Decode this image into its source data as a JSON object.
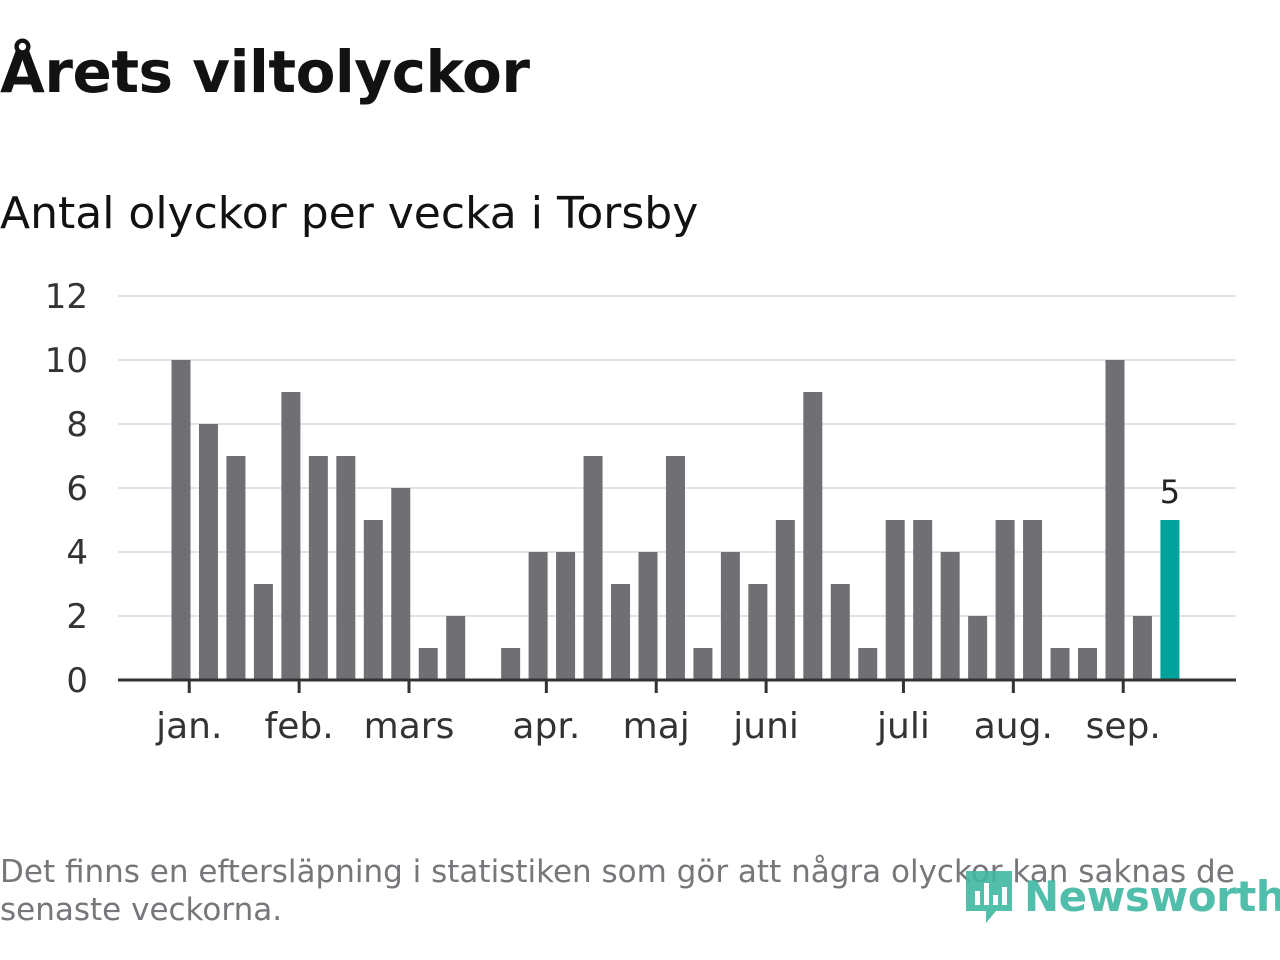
{
  "title": "Årets viltolyckor",
  "subtitle": "Antal olyckor per vecka i Torsby",
  "footnote": "Det finns en eftersläpning i statistiken som gör att några olyckor kan saknas de senaste veckorna.",
  "brand": {
    "name": "Newsworthy"
  },
  "colors": {
    "bar": "#706f74",
    "highlight": "#00a39a",
    "grid": "#e3e3e3",
    "axis": "#333333",
    "text": "#333333",
    "brand": "#3fb8a2"
  },
  "chart_data": {
    "type": "bar",
    "values": [
      10,
      8,
      7,
      3,
      9,
      7,
      7,
      5,
      6,
      1,
      2,
      0,
      1,
      4,
      4,
      7,
      3,
      4,
      7,
      1,
      4,
      3,
      5,
      9,
      3,
      1,
      5,
      5,
      4,
      2,
      5,
      5,
      1,
      1,
      10,
      2,
      5
    ],
    "highlight_index": 36,
    "highlight_label": "5",
    "month_ticks": [
      {
        "label": "jan.",
        "index": 0.3
      },
      {
        "label": "feb.",
        "index": 4.3
      },
      {
        "label": "mars",
        "index": 8.3
      },
      {
        "label": "apr.",
        "index": 13.3
      },
      {
        "label": "maj",
        "index": 17.3
      },
      {
        "label": "juni",
        "index": 21.3
      },
      {
        "label": "juli",
        "index": 26.3
      },
      {
        "label": "aug.",
        "index": 30.3
      },
      {
        "label": "sep.",
        "index": 34.3
      }
    ],
    "y_ticks": [
      0,
      2,
      4,
      6,
      8,
      10,
      12
    ],
    "ylim": [
      0,
      12
    ],
    "grid": true
  }
}
